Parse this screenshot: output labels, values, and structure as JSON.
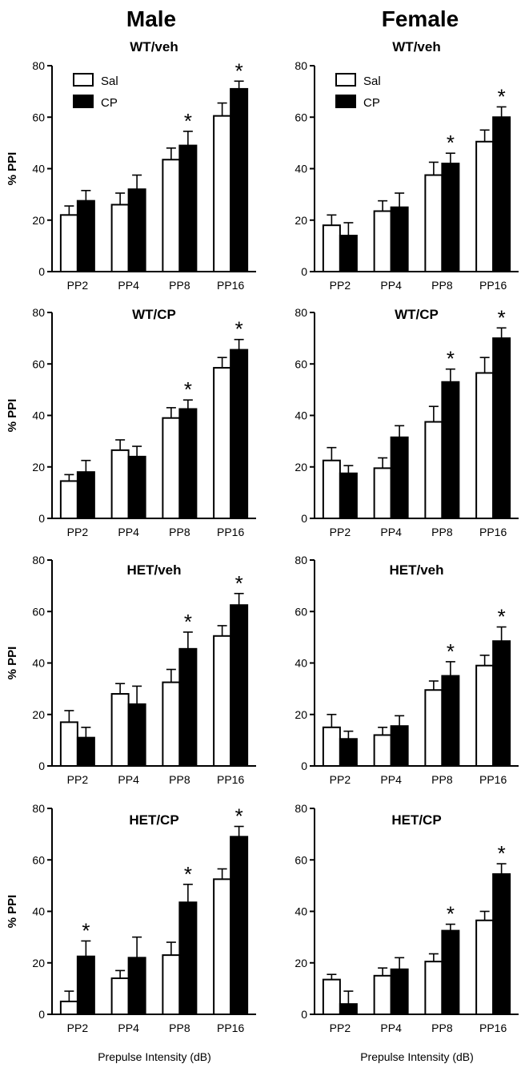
{
  "figure": {
    "columns": [
      {
        "title": "Male"
      },
      {
        "title": "Female"
      }
    ],
    "xlabel": "Prepulse Intensity (dB)"
  },
  "chart_data": [
    {
      "type": "bar",
      "sex": "Male",
      "title": "WT/veh",
      "ylabel": "% PPI",
      "ylim": [
        0,
        80
      ],
      "yticks": [
        0,
        20,
        40,
        60,
        80
      ],
      "categories": [
        "PP2",
        "PP4",
        "PP8",
        "PP16"
      ],
      "series": [
        {
          "name": "Sal",
          "color": "#ffffff",
          "values": [
            22,
            26,
            43.5,
            60.5
          ],
          "errors": [
            3.5,
            4.5,
            4.5,
            5
          ]
        },
        {
          "name": "CP",
          "color": "#000000",
          "values": [
            27.5,
            32,
            49,
            71
          ],
          "errors": [
            4,
            5.5,
            5.5,
            3
          ]
        }
      ],
      "significant": [
        false,
        false,
        true,
        true
      ],
      "legend": [
        "Sal",
        "CP"
      ]
    },
    {
      "type": "bar",
      "sex": "Female",
      "title": "WT/veh",
      "ylabel": "",
      "ylim": [
        0,
        80
      ],
      "yticks": [
        0,
        20,
        40,
        60,
        80
      ],
      "categories": [
        "PP2",
        "PP4",
        "PP8",
        "PP16"
      ],
      "series": [
        {
          "name": "Sal",
          "color": "#ffffff",
          "values": [
            18,
            23.5,
            37.5,
            50.5
          ],
          "errors": [
            4,
            4,
            5,
            4.5
          ]
        },
        {
          "name": "CP",
          "color": "#000000",
          "values": [
            14,
            25,
            42,
            60
          ],
          "errors": [
            5,
            5.5,
            4,
            4
          ]
        }
      ],
      "significant": [
        false,
        false,
        true,
        true
      ],
      "legend": [
        "Sal",
        "CP"
      ]
    },
    {
      "type": "bar",
      "sex": "Male",
      "title": "WT/CP",
      "ylabel": "% PPI",
      "ylim": [
        0,
        80
      ],
      "yticks": [
        0,
        20,
        40,
        60,
        80
      ],
      "categories": [
        "PP2",
        "PP4",
        "PP8",
        "PP16"
      ],
      "series": [
        {
          "name": "Sal",
          "color": "#ffffff",
          "values": [
            14.5,
            26.5,
            39,
            58.5
          ],
          "errors": [
            2.5,
            4,
            4,
            4
          ]
        },
        {
          "name": "CP",
          "color": "#000000",
          "values": [
            18,
            24,
            42.5,
            65.5
          ],
          "errors": [
            4.5,
            4,
            3.5,
            4
          ]
        }
      ],
      "significant": [
        false,
        false,
        true,
        true
      ],
      "legend": []
    },
    {
      "type": "bar",
      "sex": "Female",
      "title": "WT/CP",
      "ylabel": "",
      "ylim": [
        0,
        80
      ],
      "yticks": [
        0,
        20,
        40,
        60,
        80
      ],
      "categories": [
        "PP2",
        "PP4",
        "PP8",
        "PP16"
      ],
      "series": [
        {
          "name": "Sal",
          "color": "#ffffff",
          "values": [
            22.5,
            19.5,
            37.5,
            56.5
          ],
          "errors": [
            5,
            4,
            6,
            6
          ]
        },
        {
          "name": "CP",
          "color": "#000000",
          "values": [
            17.5,
            31.5,
            53,
            70
          ],
          "errors": [
            3,
            4.5,
            5,
            4
          ]
        }
      ],
      "significant": [
        false,
        false,
        true,
        true
      ],
      "legend": []
    },
    {
      "type": "bar",
      "sex": "Male",
      "title": "HET/veh",
      "ylabel": "% PPI",
      "ylim": [
        0,
        80
      ],
      "yticks": [
        0,
        20,
        40,
        60,
        80
      ],
      "categories": [
        "PP2",
        "PP4",
        "PP8",
        "PP16"
      ],
      "series": [
        {
          "name": "Sal",
          "color": "#ffffff",
          "values": [
            17,
            28,
            32.5,
            50.5
          ],
          "errors": [
            4.5,
            4,
            5,
            4
          ]
        },
        {
          "name": "CP",
          "color": "#000000",
          "values": [
            11,
            24,
            45.5,
            62.5
          ],
          "errors": [
            4,
            7,
            6.5,
            4.5
          ]
        }
      ],
      "significant": [
        false,
        false,
        true,
        true
      ],
      "legend": []
    },
    {
      "type": "bar",
      "sex": "Female",
      "title": "HET/veh",
      "ylabel": "",
      "ylim": [
        0,
        80
      ],
      "yticks": [
        0,
        20,
        40,
        60,
        80
      ],
      "categories": [
        "PP2",
        "PP4",
        "PP8",
        "PP16"
      ],
      "series": [
        {
          "name": "Sal",
          "color": "#ffffff",
          "values": [
            15,
            12,
            29.5,
            39
          ],
          "errors": [
            5,
            3,
            3.5,
            4
          ]
        },
        {
          "name": "CP",
          "color": "#000000",
          "values": [
            10.5,
            15.5,
            35,
            48.5
          ],
          "errors": [
            3,
            4,
            5.5,
            5.5
          ]
        }
      ],
      "significant": [
        false,
        false,
        true,
        true
      ],
      "legend": []
    },
    {
      "type": "bar",
      "sex": "Male",
      "title": "HET/CP",
      "ylabel": "% PPI",
      "ylim": [
        0,
        80
      ],
      "yticks": [
        0,
        20,
        40,
        60,
        80
      ],
      "categories": [
        "PP2",
        "PP4",
        "PP8",
        "PP16"
      ],
      "series": [
        {
          "name": "Sal",
          "color": "#ffffff",
          "values": [
            5,
            14,
            23,
            52.5
          ],
          "errors": [
            4,
            3,
            5,
            4
          ]
        },
        {
          "name": "CP",
          "color": "#000000",
          "values": [
            22.5,
            22,
            43.5,
            69
          ],
          "errors": [
            6,
            8,
            7,
            4
          ]
        }
      ],
      "significant": [
        true,
        false,
        true,
        true
      ],
      "legend": []
    },
    {
      "type": "bar",
      "sex": "Female",
      "title": "HET/CP",
      "ylabel": "",
      "ylim": [
        0,
        80
      ],
      "yticks": [
        0,
        20,
        40,
        60,
        80
      ],
      "categories": [
        "PP2",
        "PP4",
        "PP8",
        "PP16"
      ],
      "series": [
        {
          "name": "Sal",
          "color": "#ffffff",
          "values": [
            13.5,
            15,
            20.5,
            36.5
          ],
          "errors": [
            2,
            3,
            3,
            3.5
          ]
        },
        {
          "name": "CP",
          "color": "#000000",
          "values": [
            4,
            17.5,
            32.5,
            54.5
          ],
          "errors": [
            5,
            4.5,
            2.5,
            4
          ]
        }
      ],
      "significant": [
        false,
        false,
        true,
        true
      ],
      "legend": []
    }
  ]
}
